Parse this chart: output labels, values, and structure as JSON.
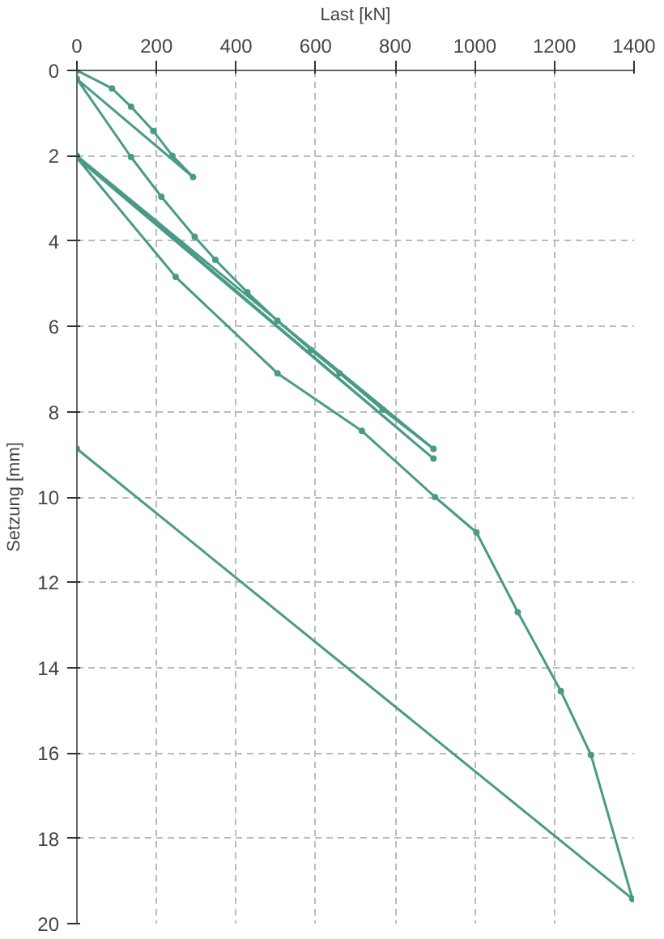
{
  "chart_data": {
    "type": "line",
    "xlabel": "Last [kN]",
    "ylabel": "Setzung [mm]",
    "x": [
      0,
      88,
      136,
      192,
      240,
      292,
      0,
      136,
      212,
      296,
      348,
      428,
      504,
      588,
      660,
      768,
      896,
      0,
      896,
      0,
      248,
      504,
      716,
      900,
      1004,
      1108,
      1216,
      1292,
      1396,
      0
    ],
    "series": [
      {
        "color": "#4a9a88",
        "values": [
          0,
          0.42,
          0.85,
          1.42,
          2.0,
          2.5,
          0.2,
          2.03,
          2.96,
          3.9,
          4.44,
          5.2,
          5.87,
          6.55,
          7.1,
          7.95,
          8.87,
          2.0,
          9.1,
          2.05,
          4.84,
          7.1,
          8.45,
          10.0,
          10.83,
          12.7,
          14.55,
          16.05,
          19.42,
          8.87
        ]
      }
    ],
    "xlim": [
      0,
      1400
    ],
    "ylim": [
      20,
      0
    ],
    "xticks": [
      0,
      200,
      400,
      600,
      800,
      1000,
      1200,
      1400
    ],
    "yticks": [
      0,
      2,
      4,
      6,
      8,
      10,
      12,
      14,
      16,
      18,
      20
    ],
    "grid": true,
    "marker": "circle",
    "line_style": "solid"
  }
}
